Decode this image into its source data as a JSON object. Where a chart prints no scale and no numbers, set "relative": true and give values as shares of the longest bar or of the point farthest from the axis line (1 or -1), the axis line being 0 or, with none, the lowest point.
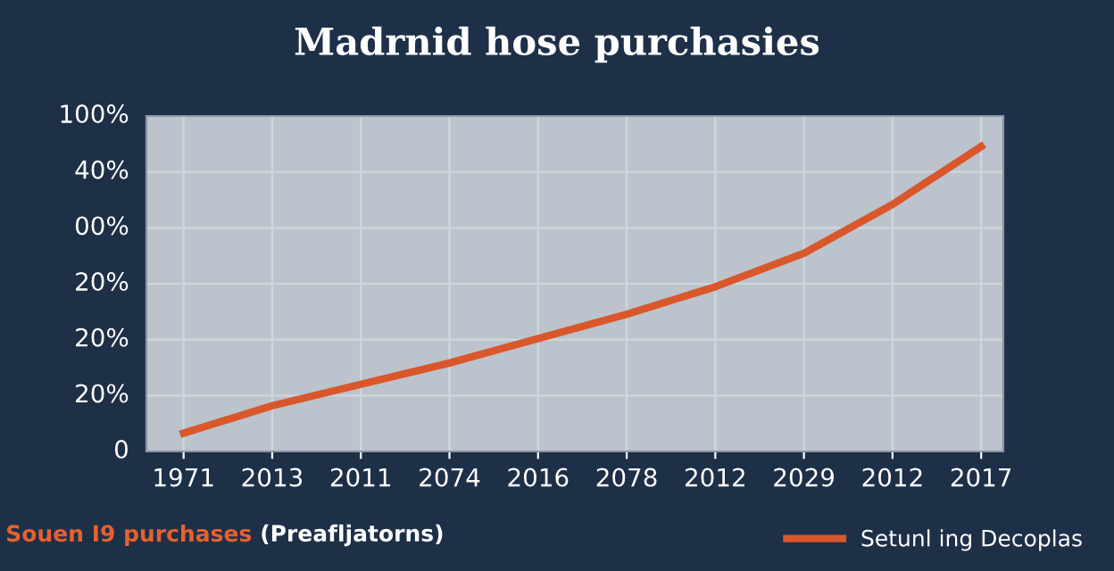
{
  "chart_data": {
    "type": "line",
    "title": "Madrnid hose purchasies",
    "relative": true,
    "categories": [
      "1971",
      "2013",
      "2011",
      "2074",
      "2016",
      "2078",
      "2012",
      "2029",
      "2012",
      "2017"
    ],
    "series": [
      {
        "name": "Setunl ing Decoplas",
        "color": "#d9572b",
        "values": [
          0.06,
          0.15,
          0.22,
          0.29,
          0.37,
          0.45,
          0.54,
          0.65,
          0.81,
          1.0
        ]
      }
    ],
    "annotations": [
      "100%",
      "40%",
      "00%",
      "20%",
      "20%",
      "20%",
      "0",
      "Souen I9 purchases",
      "(Preafljatorns)"
    ],
    "grid": true,
    "legend": "bottom right",
    "line_style": "solid"
  }
}
